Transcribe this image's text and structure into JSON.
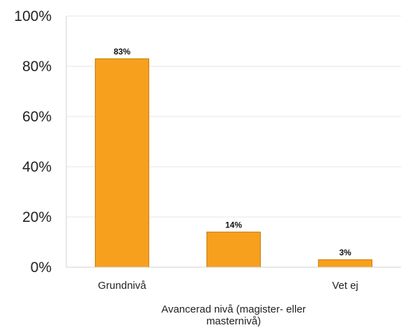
{
  "chart_data": {
    "type": "bar",
    "categories": [
      "Grundnivå",
      "Avancerad nivå (magister- eller masternivå)",
      "Vet ej"
    ],
    "category_label_lines": [
      [
        "Grundnivå"
      ],
      [
        "Avancerad nivå (magister- eller",
        "masternivå)"
      ],
      [
        "Vet ej"
      ]
    ],
    "values": [
      83,
      14,
      3
    ],
    "data_labels": [
      "83%",
      "14%",
      "3%"
    ],
    "y_ticks": [
      "0%",
      "20%",
      "40%",
      "60%",
      "80%",
      "100%"
    ],
    "y_tick_values": [
      0,
      20,
      40,
      60,
      80,
      100
    ],
    "ylim": [
      0,
      100
    ],
    "title": "",
    "xlabel": "",
    "ylabel": "",
    "grid": true,
    "bar_color": "#F7A01E",
    "bar_edge_color": "#C47A08",
    "grid_color": "#E6E6E6"
  }
}
